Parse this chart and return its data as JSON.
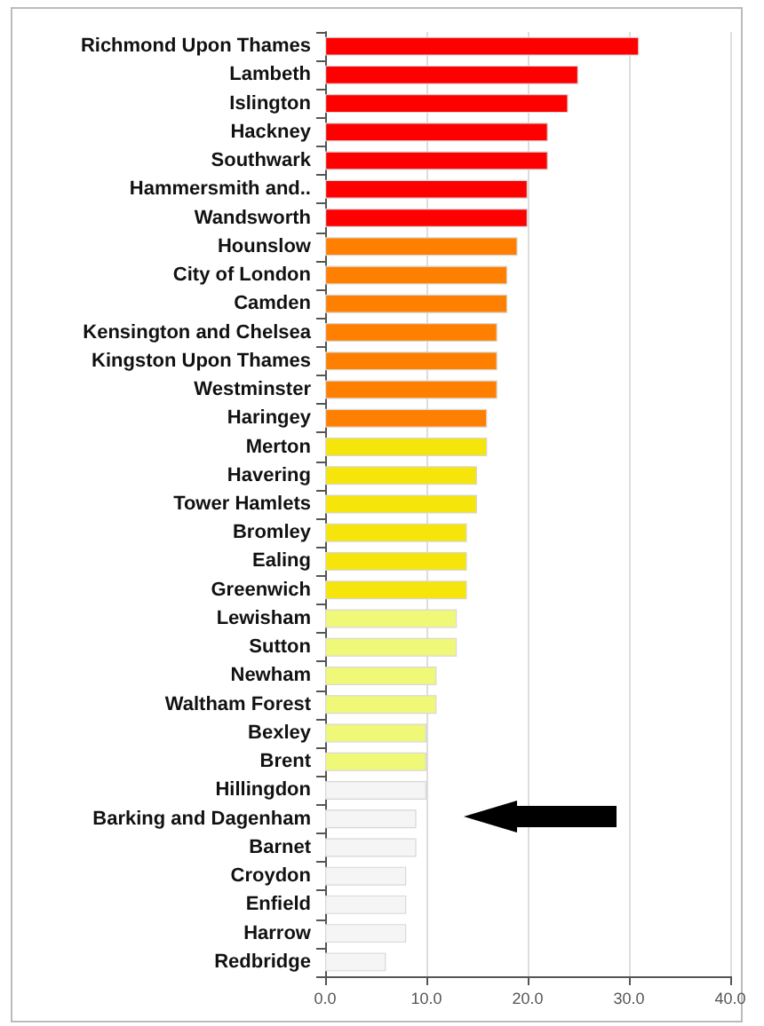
{
  "chart_data": {
    "type": "bar",
    "orientation": "horizontal",
    "categories": [
      "Richmond Upon Thames",
      "Lambeth",
      "Islington",
      "Hackney",
      "Southwark",
      "Hammersmith and..",
      "Wandsworth",
      "Hounslow",
      "City of London",
      "Camden",
      "Kensington and Chelsea",
      "Kingston Upon Thames",
      "Westminster",
      "Haringey",
      "Merton",
      "Havering",
      "Tower Hamlets",
      "Bromley",
      "Ealing",
      "Greenwich",
      "Lewisham",
      "Sutton",
      "Newham",
      "Waltham Forest",
      "Bexley",
      "Brent",
      "Hillingdon",
      "Barking and Dagenham",
      "Barnet",
      "Croydon",
      "Enfield",
      "Harrow",
      "Redbridge"
    ],
    "values": [
      31,
      25,
      24,
      22,
      22,
      20,
      20,
      19,
      18,
      18,
      17,
      17,
      17,
      16,
      16,
      15,
      15,
      14,
      14,
      14,
      13,
      13,
      11,
      11,
      10,
      10,
      10,
      9,
      9,
      8,
      8,
      8,
      6
    ],
    "colors": [
      "#ff0000",
      "#ff0000",
      "#ff0000",
      "#ff0000",
      "#ff0000",
      "#ff0000",
      "#ff0000",
      "#ff8000",
      "#ff8000",
      "#ff8000",
      "#ff8000",
      "#ff8000",
      "#ff8000",
      "#ff8000",
      "#f5e50a",
      "#f5e50a",
      "#f5e50a",
      "#f5e50a",
      "#f5e50a",
      "#f5e50a",
      "#f0f878",
      "#f0f878",
      "#f0f878",
      "#f0f878",
      "#f0f878",
      "#f0f878",
      "#f5f5f5",
      "#f5f5f5",
      "#f5f5f5",
      "#f5f5f5",
      "#f5f5f5",
      "#f5f5f5",
      "#f5f5f5"
    ],
    "xlim": [
      0,
      40
    ],
    "xticks": [
      {
        "value": 0,
        "label": "0.0"
      },
      {
        "value": 10,
        "label": "10.0"
      },
      {
        "value": 20,
        "label": "20.0"
      },
      {
        "value": 30,
        "label": "30.0"
      },
      {
        "value": 40,
        "label": "40.0"
      }
    ],
    "grid": "x"
  }
}
